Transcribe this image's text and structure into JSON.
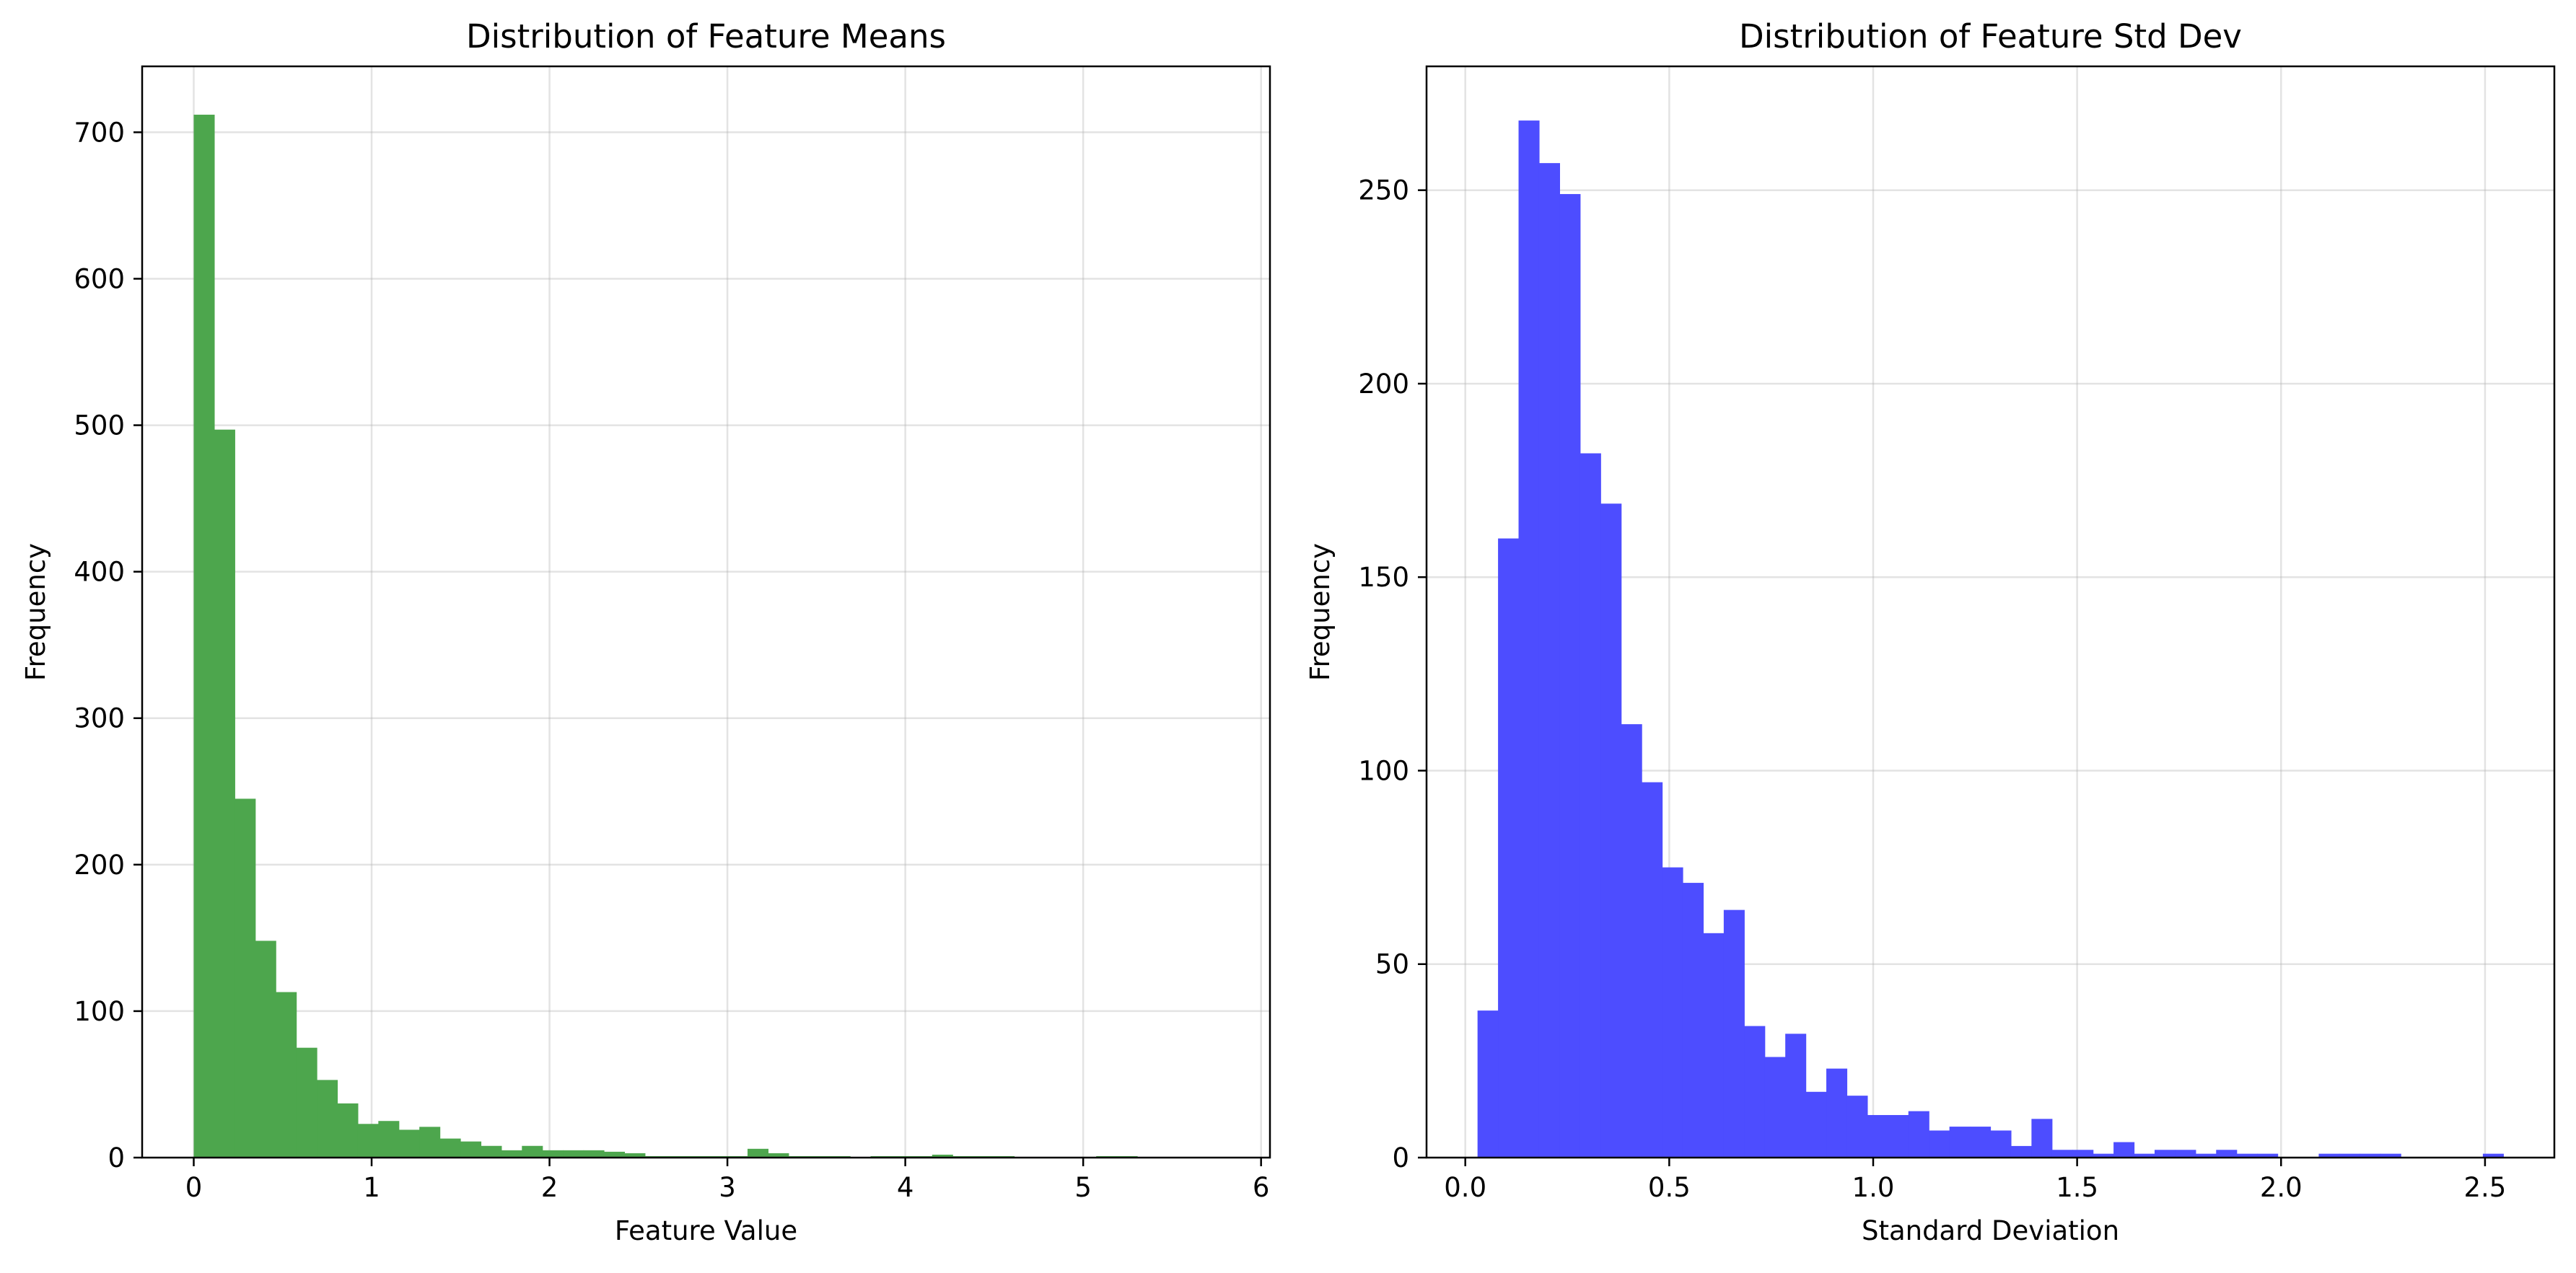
{
  "chart_data": [
    {
      "type": "bar",
      "title": "Distribution of Feature Means",
      "xlabel": "Feature Value",
      "ylabel": "Frequency",
      "color": "#2ca02c",
      "bar_color": "#4da64d",
      "grid": true,
      "xlim": [
        -0.29,
        6.05
      ],
      "ylim": [
        0,
        745
      ],
      "xticks": [
        0,
        1,
        2,
        3,
        4,
        5,
        6
      ],
      "yticks": [
        0,
        100,
        200,
        300,
        400,
        500,
        600,
        700
      ],
      "bin_start": 0.0,
      "bin_width": 0.1153,
      "values": [
        712,
        497,
        245,
        148,
        113,
        75,
        53,
        37,
        23,
        25,
        19,
        21,
        13,
        11,
        8,
        5,
        8,
        5,
        5,
        5,
        4,
        3,
        1,
        1,
        1,
        1,
        1,
        6,
        3,
        1,
        1,
        1,
        0,
        1,
        1,
        1,
        2,
        1,
        1,
        1,
        0,
        0,
        0,
        0,
        1,
        1,
        0,
        0,
        0,
        0
      ]
    },
    {
      "type": "bar",
      "title": "Distribution of Feature Std Dev",
      "xlabel": "Standard Deviation",
      "ylabel": "Frequency",
      "color": "#0000ff",
      "bar_color": "#4d4dff",
      "grid": true,
      "xlim": [
        -0.095,
        2.67
      ],
      "ylim": [
        0,
        282
      ],
      "xticks": [
        0.0,
        0.5,
        1.0,
        1.5,
        2.0,
        2.5
      ],
      "xtick_labels": [
        "0.0",
        "0.5",
        "1.0",
        "1.5",
        "2.0",
        "2.5"
      ],
      "yticks": [
        0,
        50,
        100,
        150,
        200,
        250
      ],
      "bin_start": 0.03,
      "bin_width": 0.0503,
      "values": [
        38,
        160,
        268,
        257,
        249,
        182,
        169,
        112,
        97,
        75,
        71,
        58,
        64,
        34,
        26,
        32,
        17,
        23,
        16,
        11,
        11,
        12,
        7,
        8,
        8,
        7,
        3,
        10,
        2,
        2,
        1,
        4,
        1,
        2,
        2,
        1,
        2,
        1,
        1,
        0,
        0,
        1,
        1,
        1,
        1,
        0,
        0,
        0,
        0,
        1
      ]
    }
  ]
}
